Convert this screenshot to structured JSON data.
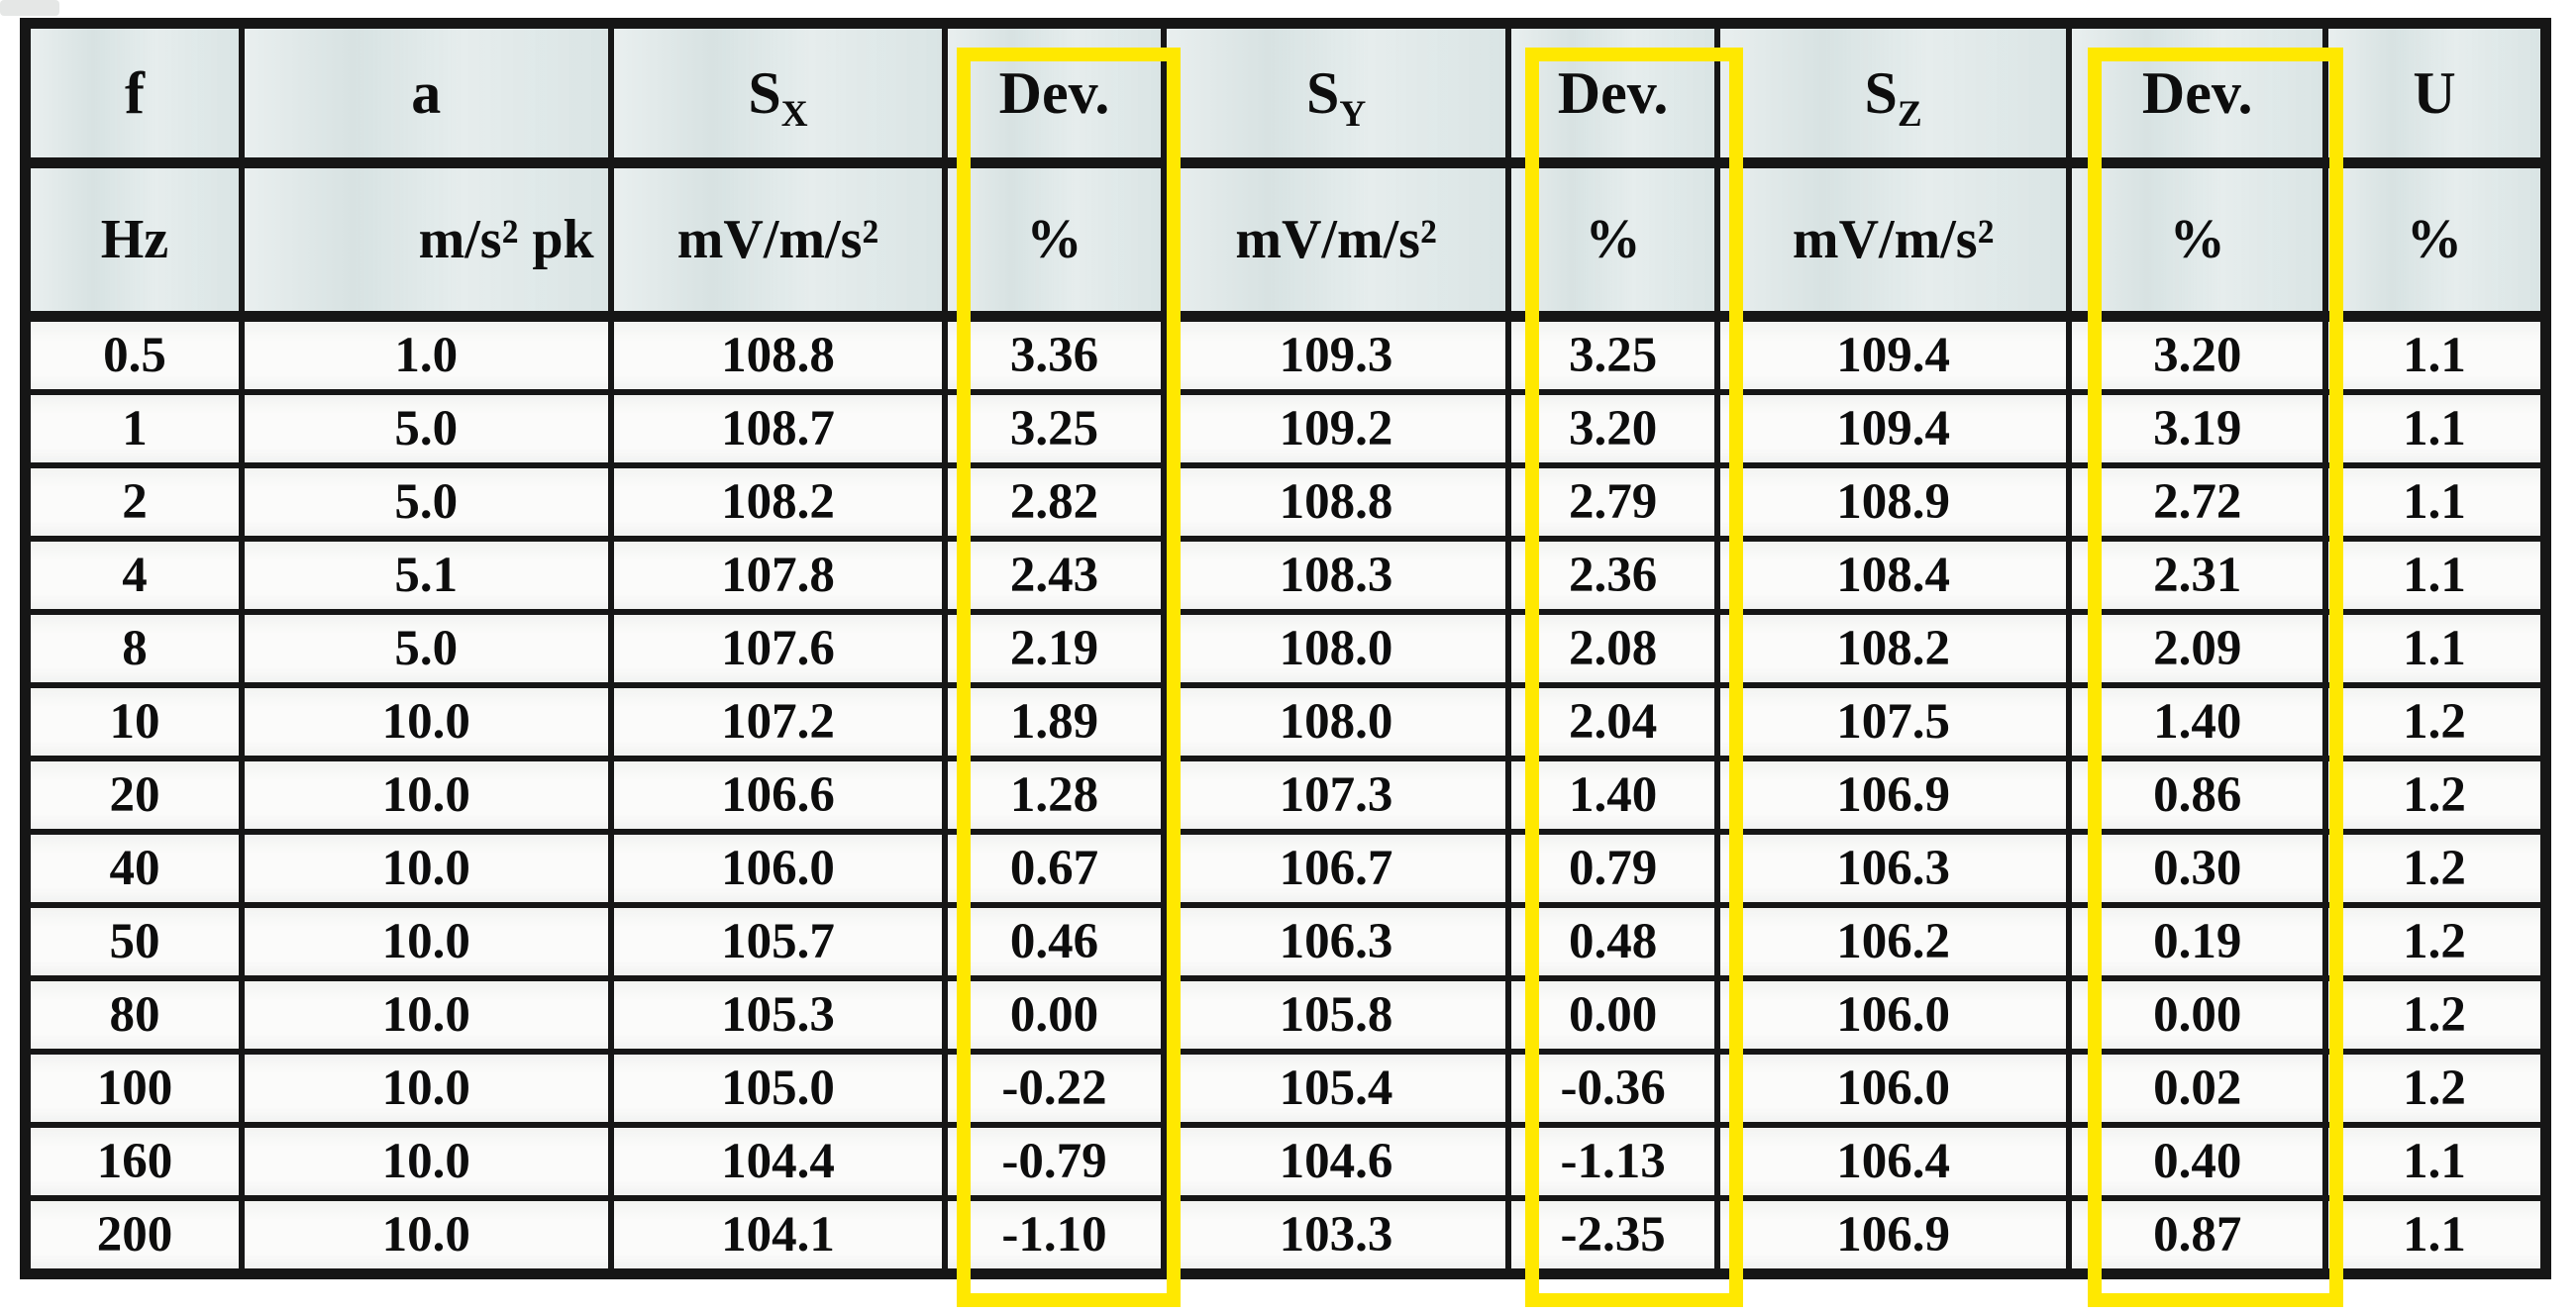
{
  "table": {
    "highlight_color": "#ffe800",
    "header_bg": "#dde7e7",
    "columns": [
      {
        "label": "f",
        "sub": "",
        "unit": "Hz",
        "highlighted": false
      },
      {
        "label": "a",
        "sub": "",
        "unit": "m/s² pk",
        "highlighted": false
      },
      {
        "label": "S",
        "sub": "X",
        "unit": "mV/m/s²",
        "highlighted": false
      },
      {
        "label": "Dev.",
        "sub": "",
        "unit": "%",
        "highlighted": true
      },
      {
        "label": "S",
        "sub": "Y",
        "unit": "mV/m/s²",
        "highlighted": false
      },
      {
        "label": "Dev.",
        "sub": "",
        "unit": "%",
        "highlighted": true
      },
      {
        "label": "S",
        "sub": "Z",
        "unit": "mV/m/s²",
        "highlighted": false
      },
      {
        "label": "Dev.",
        "sub": "",
        "unit": "%",
        "highlighted": true
      },
      {
        "label": "U",
        "sub": "",
        "unit": "%",
        "highlighted": false
      }
    ],
    "rows": [
      [
        "0.5",
        "1.0",
        "108.8",
        "3.36",
        "109.3",
        "3.25",
        "109.4",
        "3.20",
        "1.1"
      ],
      [
        "1",
        "5.0",
        "108.7",
        "3.25",
        "109.2",
        "3.20",
        "109.4",
        "3.19",
        "1.1"
      ],
      [
        "2",
        "5.0",
        "108.2",
        "2.82",
        "108.8",
        "2.79",
        "108.9",
        "2.72",
        "1.1"
      ],
      [
        "4",
        "5.1",
        "107.8",
        "2.43",
        "108.3",
        "2.36",
        "108.4",
        "2.31",
        "1.1"
      ],
      [
        "8",
        "5.0",
        "107.6",
        "2.19",
        "108.0",
        "2.08",
        "108.2",
        "2.09",
        "1.1"
      ],
      [
        "10",
        "10.0",
        "107.2",
        "1.89",
        "108.0",
        "2.04",
        "107.5",
        "1.40",
        "1.2"
      ],
      [
        "20",
        "10.0",
        "106.6",
        "1.28",
        "107.3",
        "1.40",
        "106.9",
        "0.86",
        "1.2"
      ],
      [
        "40",
        "10.0",
        "106.0",
        "0.67",
        "106.7",
        "0.79",
        "106.3",
        "0.30",
        "1.2"
      ],
      [
        "50",
        "10.0",
        "105.7",
        "0.46",
        "106.3",
        "0.48",
        "106.2",
        "0.19",
        "1.2"
      ],
      [
        "80",
        "10.0",
        "105.3",
        "0.00",
        "105.8",
        "0.00",
        "106.0",
        "0.00",
        "1.2"
      ],
      [
        "100",
        "10.0",
        "105.0",
        "-0.22",
        "105.4",
        "-0.36",
        "106.0",
        "0.02",
        "1.2"
      ],
      [
        "160",
        "10.0",
        "104.4",
        "-0.79",
        "104.6",
        "-1.13",
        "106.4",
        "0.40",
        "1.1"
      ],
      [
        "200",
        "10.0",
        "104.1",
        "-1.10",
        "103.3",
        "-2.35",
        "106.9",
        "0.87",
        "1.1"
      ]
    ]
  }
}
